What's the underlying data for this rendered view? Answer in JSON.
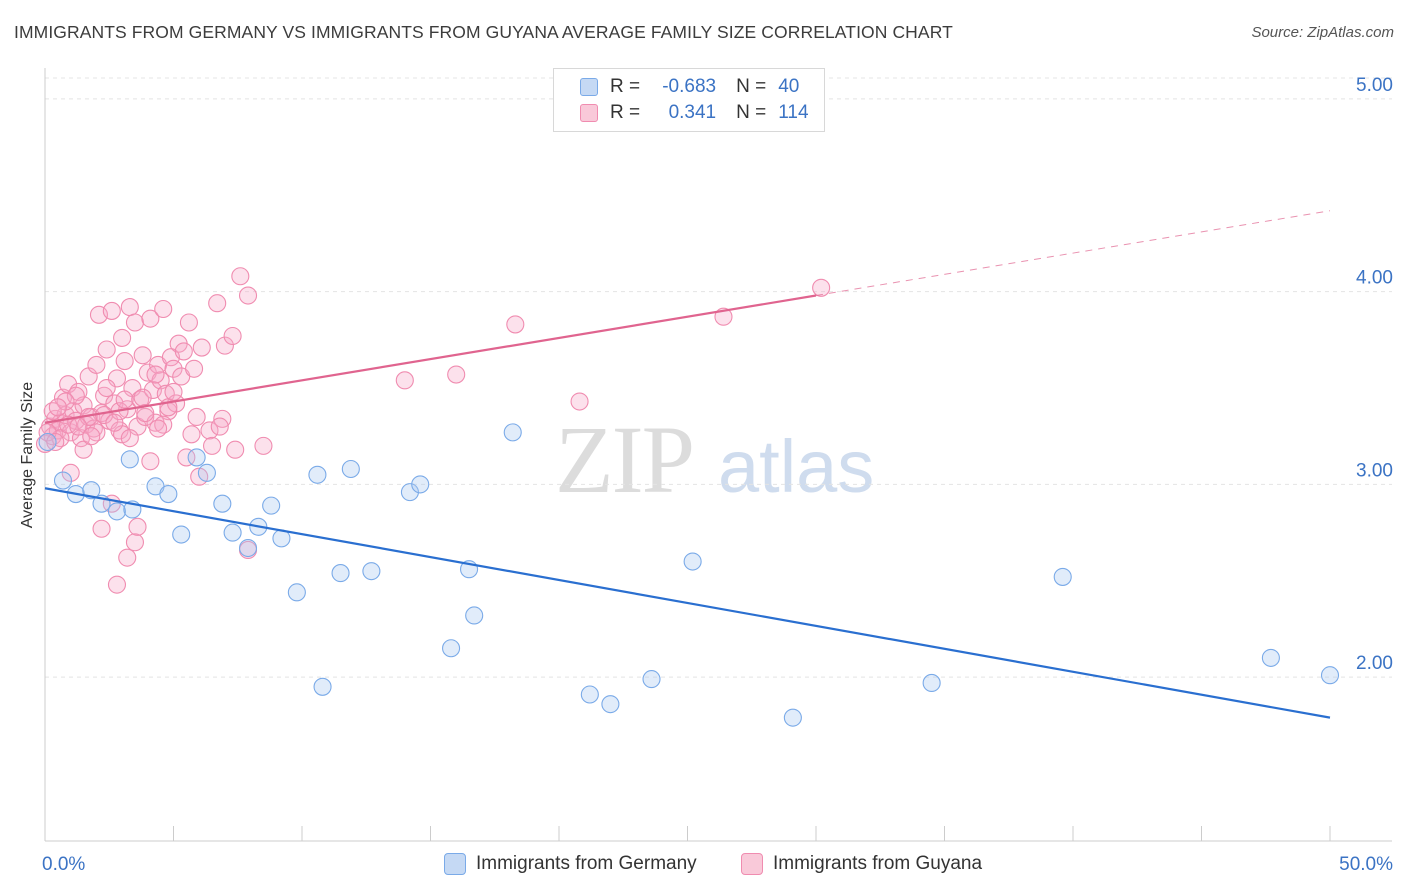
{
  "title": "IMMIGRANTS FROM GERMANY VS IMMIGRANTS FROM GUYANA AVERAGE FAMILY SIZE CORRELATION CHART",
  "source": "Source: ZipAtlas.com",
  "watermark": {
    "zip": "ZIP",
    "atlas": "atlas"
  },
  "stats": {
    "germany": {
      "r_label": "R =",
      "r_value": "-0.683",
      "n_label": "N =",
      "n_value": "40"
    },
    "guyana": {
      "r_label": "R =",
      "r_value": "0.341",
      "n_label": "N =",
      "n_value": "114"
    }
  },
  "chart_data": {
    "type": "scatter",
    "title": "IMMIGRANTS FROM GERMANY VS IMMIGRANTS FROM GUYANA AVERAGE FAMILY SIZE CORRELATION CHART",
    "xlabel": "",
    "ylabel": "Average Family Size",
    "xlim": [
      0,
      50
    ],
    "ylim": [
      1.15,
      5.15
    ],
    "x_tick_labels": [
      "0.0%",
      "50.0%"
    ],
    "y_ticks": [
      2.0,
      3.0,
      4.0,
      5.0
    ],
    "y_tick_labels": [
      "2.00",
      "3.00",
      "4.00",
      "5.00"
    ],
    "grid": "horizontal dashed",
    "legend_position": "bottom",
    "colors": {
      "germany": "#7aaae8",
      "germany_line": "#2a6fd0",
      "guyana": "#f08cb0",
      "guyana_line": "#e0648f",
      "tick_label": "#3b73c4"
    },
    "series": [
      {
        "name": "Immigrants from Germany",
        "key": "germany",
        "trend": {
          "x": [
            0,
            50
          ],
          "y": [
            2.98,
            1.79
          ],
          "dashed_from": null
        },
        "points": [
          [
            0.1,
            3.22
          ],
          [
            0.7,
            3.02
          ],
          [
            1.2,
            2.95
          ],
          [
            1.8,
            2.97
          ],
          [
            2.2,
            2.9
          ],
          [
            2.8,
            2.86
          ],
          [
            3.4,
            2.87
          ],
          [
            3.3,
            3.13
          ],
          [
            4.3,
            2.99
          ],
          [
            4.8,
            2.95
          ],
          [
            5.3,
            2.74
          ],
          [
            5.9,
            3.14
          ],
          [
            6.3,
            3.06
          ],
          [
            6.9,
            2.9
          ],
          [
            7.3,
            2.75
          ],
          [
            7.9,
            2.67
          ],
          [
            8.3,
            2.78
          ],
          [
            8.8,
            2.89
          ],
          [
            9.2,
            2.72
          ],
          [
            9.8,
            2.44
          ],
          [
            10.6,
            3.05
          ],
          [
            10.8,
            1.95
          ],
          [
            11.5,
            2.54
          ],
          [
            11.9,
            3.08
          ],
          [
            12.7,
            2.55
          ],
          [
            14.2,
            2.96
          ],
          [
            14.6,
            3.0
          ],
          [
            15.8,
            2.15
          ],
          [
            16.5,
            2.56
          ],
          [
            16.7,
            2.32
          ],
          [
            18.2,
            3.27
          ],
          [
            21.2,
            1.91
          ],
          [
            22.0,
            1.86
          ],
          [
            23.6,
            1.99
          ],
          [
            25.2,
            2.6
          ],
          [
            29.1,
            1.79
          ],
          [
            34.5,
            1.97
          ],
          [
            39.6,
            2.52
          ],
          [
            47.7,
            2.1
          ],
          [
            50.0,
            2.01
          ]
        ]
      },
      {
        "name": "Immigrants from Guyana",
        "key": "guyana",
        "trend": {
          "x": [
            0,
            50
          ],
          "y": [
            3.32,
            4.42
          ],
          "dashed_from": 30
        },
        "points": [
          [
            0.0,
            3.21
          ],
          [
            0.2,
            3.3
          ],
          [
            0.3,
            3.25
          ],
          [
            0.4,
            3.34
          ],
          [
            0.5,
            3.28
          ],
          [
            0.6,
            3.32
          ],
          [
            0.7,
            3.45
          ],
          [
            0.8,
            3.36
          ],
          [
            0.9,
            3.52
          ],
          [
            1.0,
            3.27
          ],
          [
            1.1,
            3.38
          ],
          [
            1.2,
            3.33
          ],
          [
            1.3,
            3.48
          ],
          [
            1.4,
            3.24
          ],
          [
            1.5,
            3.41
          ],
          [
            1.6,
            3.31
          ],
          [
            1.7,
            3.56
          ],
          [
            1.8,
            3.35
          ],
          [
            1.9,
            3.29
          ],
          [
            2.0,
            3.62
          ],
          [
            2.1,
            3.88
          ],
          [
            2.2,
            3.37
          ],
          [
            2.3,
            3.46
          ],
          [
            2.4,
            3.7
          ],
          [
            2.5,
            3.33
          ],
          [
            2.6,
            3.9
          ],
          [
            2.7,
            3.42
          ],
          [
            2.8,
            3.55
          ],
          [
            2.9,
            3.28
          ],
          [
            3.0,
            3.76
          ],
          [
            3.1,
            3.64
          ],
          [
            3.2,
            3.39
          ],
          [
            3.3,
            3.92
          ],
          [
            3.4,
            3.5
          ],
          [
            3.5,
            3.84
          ],
          [
            3.6,
            3.3
          ],
          [
            3.7,
            3.44
          ],
          [
            3.8,
            3.67
          ],
          [
            3.9,
            3.35
          ],
          [
            4.0,
            3.58
          ],
          [
            4.1,
            3.86
          ],
          [
            4.2,
            3.49
          ],
          [
            4.3,
            3.32
          ],
          [
            4.4,
            3.62
          ],
          [
            4.5,
            3.54
          ],
          [
            4.6,
            3.91
          ],
          [
            4.7,
            3.47
          ],
          [
            4.8,
            3.38
          ],
          [
            4.9,
            3.66
          ],
          [
            5.0,
            3.6
          ],
          [
            5.1,
            3.42
          ],
          [
            5.2,
            3.73
          ],
          [
            5.3,
            3.56
          ],
          [
            5.4,
            3.69
          ],
          [
            5.6,
            3.84
          ],
          [
            5.8,
            3.6
          ],
          [
            6.1,
            3.71
          ],
          [
            6.4,
            3.28
          ],
          [
            6.7,
            3.94
          ],
          [
            7.0,
            3.72
          ],
          [
            7.3,
            3.77
          ],
          [
            7.6,
            4.08
          ],
          [
            7.9,
            3.98
          ],
          [
            8.5,
            3.2
          ],
          [
            1.0,
            3.06
          ],
          [
            1.5,
            3.18
          ],
          [
            2.2,
            2.77
          ],
          [
            2.6,
            2.9
          ],
          [
            3.0,
            3.26
          ],
          [
            3.5,
            2.7
          ],
          [
            4.1,
            3.12
          ],
          [
            4.6,
            3.31
          ],
          [
            2.8,
            2.48
          ],
          [
            3.2,
            2.62
          ],
          [
            3.6,
            2.78
          ],
          [
            5.5,
            3.14
          ],
          [
            6.0,
            3.04
          ],
          [
            6.5,
            3.2
          ],
          [
            7.9,
            2.66
          ],
          [
            0.3,
            3.38
          ],
          [
            0.6,
            3.24
          ],
          [
            0.9,
            3.31
          ],
          [
            1.2,
            3.46
          ],
          [
            1.7,
            3.35
          ],
          [
            2.0,
            3.27
          ],
          [
            2.4,
            3.5
          ],
          [
            2.9,
            3.38
          ],
          [
            3.3,
            3.24
          ],
          [
            3.8,
            3.45
          ],
          [
            4.3,
            3.57
          ],
          [
            4.8,
            3.4
          ],
          [
            5.7,
            3.26
          ],
          [
            6.9,
            3.34
          ],
          [
            7.4,
            3.18
          ],
          [
            0.1,
            3.27
          ],
          [
            0.4,
            3.22
          ],
          [
            0.8,
            3.43
          ],
          [
            1.3,
            3.3
          ],
          [
            1.8,
            3.25
          ],
          [
            2.3,
            3.36
          ],
          [
            2.7,
            3.32
          ],
          [
            3.1,
            3.44
          ],
          [
            3.9,
            3.37
          ],
          [
            4.4,
            3.29
          ],
          [
            5.0,
            3.48
          ],
          [
            5.9,
            3.35
          ],
          [
            6.8,
            3.3
          ],
          [
            14.0,
            3.54
          ],
          [
            16.0,
            3.57
          ],
          [
            18.3,
            3.83
          ],
          [
            20.8,
            3.43
          ],
          [
            26.4,
            3.87
          ],
          [
            30.2,
            4.02
          ],
          [
            0.5,
            3.4
          ]
        ]
      }
    ]
  },
  "legend": [
    {
      "label": "Immigrants from Germany",
      "key": "germany"
    },
    {
      "label": "Immigrants from Guyana",
      "key": "guyana"
    }
  ]
}
